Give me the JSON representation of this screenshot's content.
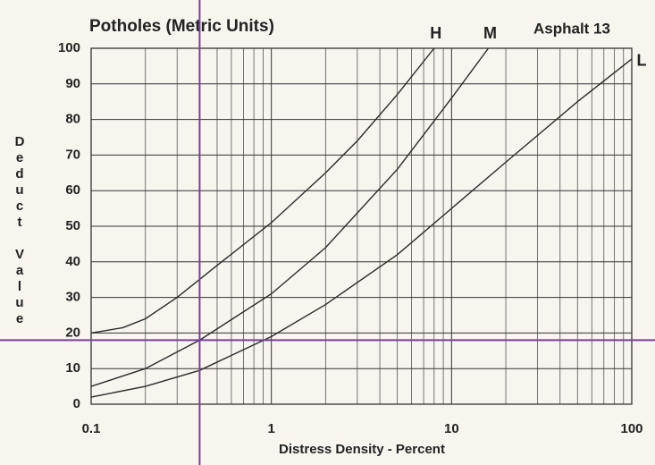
{
  "chart_data": {
    "type": "line",
    "title": "Potholes (Metric Units)",
    "subtitle": "Asphalt 13",
    "x_label": "Distress Density - Percent",
    "y_label": "Deduct Value",
    "log_x": true,
    "grid": true,
    "xlim": [
      0.1,
      100
    ],
    "xticks": [
      0.1,
      1,
      10,
      100
    ],
    "x_minor_ticks": [
      0.2,
      0.3,
      0.4,
      0.5,
      0.6,
      0.7,
      0.8,
      0.9,
      2,
      3,
      4,
      5,
      6,
      7,
      8,
      9,
      20,
      30,
      40,
      50,
      60,
      70,
      80,
      90
    ],
    "ylim": [
      0,
      100
    ],
    "yticks": [
      0,
      10,
      20,
      30,
      40,
      50,
      60,
      70,
      80,
      90,
      100
    ],
    "series": [
      {
        "name": "H",
        "color": "#2a2a2a",
        "x": [
          0.1,
          0.15,
          0.2,
          0.3,
          0.5,
          1,
          2,
          3,
          5,
          8
        ],
        "values": [
          20,
          21.5,
          24,
          30,
          39,
          51,
          65,
          74,
          87,
          100
        ]
      },
      {
        "name": "M",
        "color": "#2a2a2a",
        "x": [
          0.1,
          0.2,
          0.4,
          1,
          2,
          5,
          10,
          16
        ],
        "values": [
          5,
          10,
          18,
          31,
          44,
          66,
          86,
          100
        ]
      },
      {
        "name": "L",
        "color": "#2a2a2a",
        "x": [
          0.1,
          0.2,
          0.4,
          1,
          2,
          5,
          10,
          20,
          50,
          100
        ],
        "values": [
          2,
          5,
          9.5,
          19,
          28,
          42,
          55,
          68,
          85,
          97
        ]
      }
    ],
    "reference_lines": {
      "color": "#7a3e9d",
      "x": 0.4,
      "y": 18
    }
  }
}
